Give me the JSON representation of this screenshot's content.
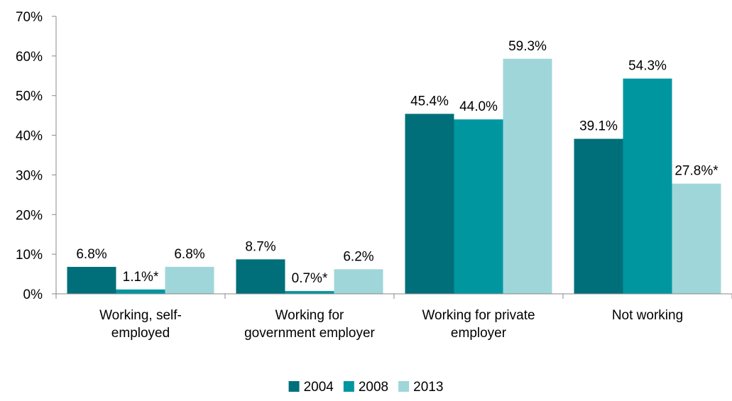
{
  "chart_data": {
    "type": "bar",
    "categories": [
      [
        "Working, self-",
        "employed"
      ],
      [
        "Working for",
        "government employer"
      ],
      [
        "Working for private",
        "employer"
      ],
      [
        "Not working"
      ]
    ],
    "series": [
      {
        "name": "2004",
        "color": "#006f7a",
        "values": [
          6.8,
          8.7,
          45.4,
          39.1
        ],
        "labels": [
          "6.8%",
          "8.7%",
          "45.4%",
          "39.1%"
        ]
      },
      {
        "name": "2008",
        "color": "#0096a0",
        "values": [
          1.1,
          0.7,
          44.0,
          54.3
        ],
        "labels": [
          "1.1%*",
          "0.7%*",
          "44.0%",
          "54.3%"
        ]
      },
      {
        "name": "2013",
        "color": "#9fd6da",
        "values": [
          6.8,
          6.2,
          59.3,
          27.8
        ],
        "labels": [
          "6.8%",
          "6.2%",
          "59.3%",
          "27.8%*"
        ]
      }
    ],
    "ylim": [
      0,
      70
    ],
    "yticks": [
      "0%",
      "10%",
      "20%",
      "30%",
      "40%",
      "50%",
      "60%",
      "70%"
    ],
    "ytick_values": [
      0,
      10,
      20,
      30,
      40,
      50,
      60,
      70
    ],
    "legend_position": "bottom",
    "grid": false
  }
}
